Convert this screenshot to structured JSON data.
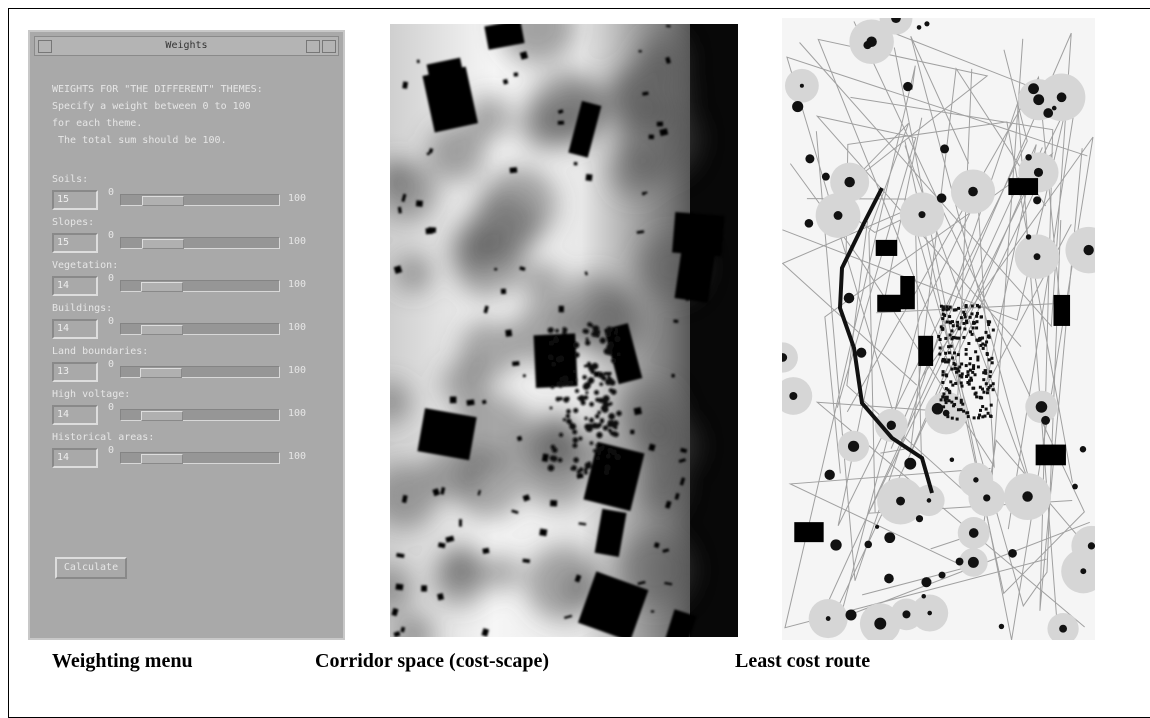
{
  "dialog": {
    "title": "Weights",
    "intro": [
      "WEIGHTS FOR \"THE DIFFERENT\" THEMES:",
      "Specify a weight between 0 to 100",
      "for each theme.",
      " The total sum should be 100."
    ],
    "sliders": [
      {
        "label": "Soils:",
        "value": "15",
        "min": "0",
        "max": "100"
      },
      {
        "label": "Slopes:",
        "value": "15",
        "min": "0",
        "max": "100"
      },
      {
        "label": "Vegetation:",
        "value": "14",
        "min": "0",
        "max": "100"
      },
      {
        "label": "Buildings:",
        "value": "14",
        "min": "0",
        "max": "100"
      },
      {
        "label": "Land boundaries:",
        "value": "13",
        "min": "0",
        "max": "100"
      },
      {
        "label": "High voltage:",
        "value": "14",
        "min": "0",
        "max": "100"
      },
      {
        "label": "Historical areas:",
        "value": "14",
        "min": "0",
        "max": "100"
      }
    ],
    "button": "Calculate"
  },
  "captions": [
    "Weighting menu",
    "Corridor space (cost-scape)",
    "Least cost route"
  ]
}
